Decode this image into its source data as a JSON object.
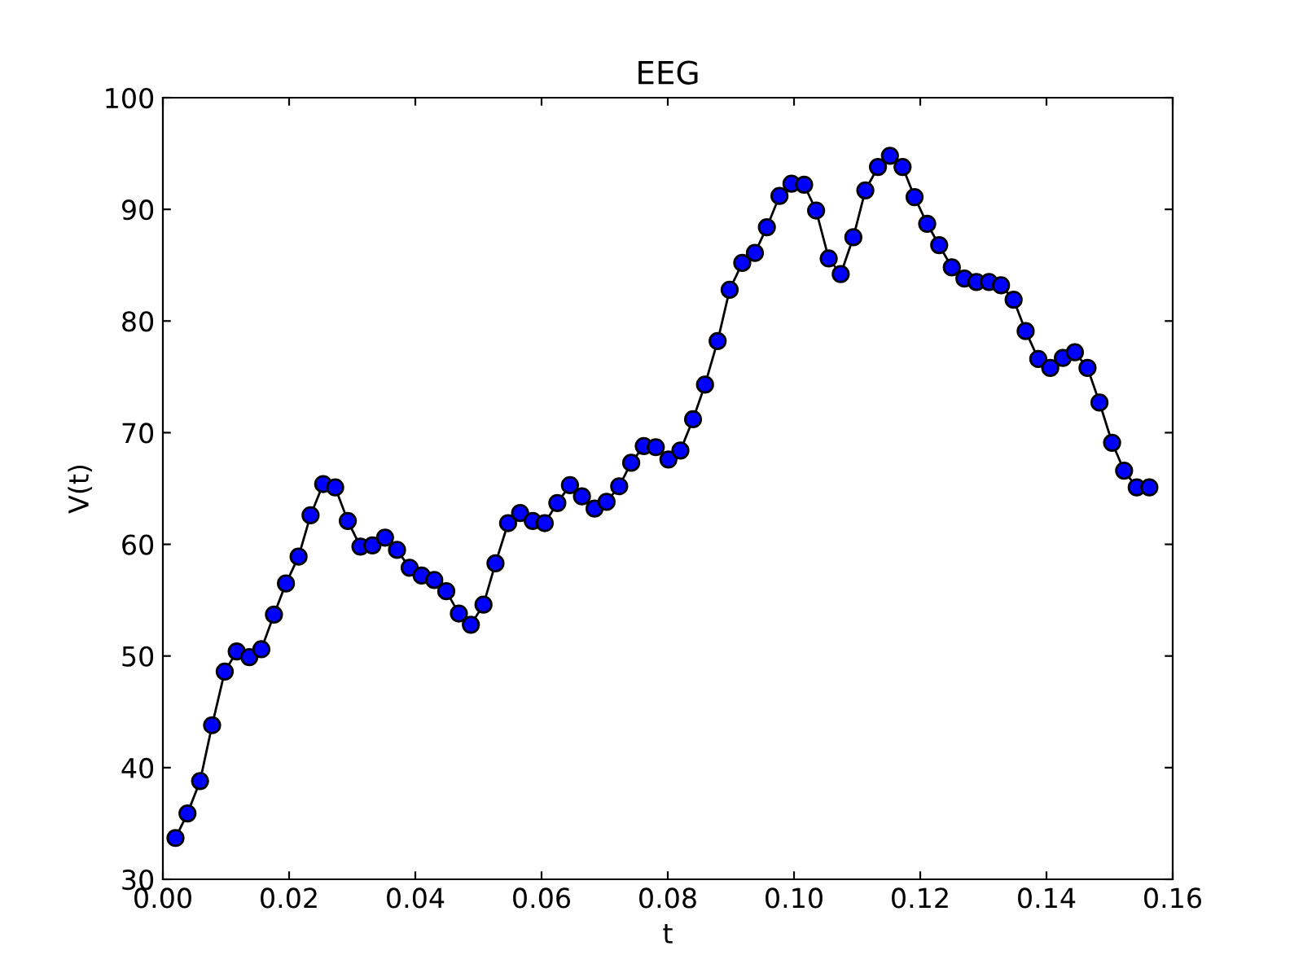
{
  "chart_data": {
    "type": "line",
    "title": "EEG",
    "xlabel": "t",
    "ylabel": "V(t)",
    "x": [
      0.002,
      0.0039,
      0.0059,
      0.0078,
      0.0098,
      0.0117,
      0.0137,
      0.0156,
      0.0176,
      0.0195,
      0.0215,
      0.0234,
      0.0254,
      0.0273,
      0.0293,
      0.0313,
      0.0332,
      0.0352,
      0.0371,
      0.0391,
      0.041,
      0.043,
      0.0449,
      0.0469,
      0.0488,
      0.0508,
      0.0527,
      0.0547,
      0.0566,
      0.0586,
      0.0605,
      0.0625,
      0.0645,
      0.0664,
      0.0684,
      0.0703,
      0.0723,
      0.0742,
      0.0762,
      0.0781,
      0.0801,
      0.082,
      0.084,
      0.0859,
      0.0879,
      0.0898,
      0.0918,
      0.0938,
      0.0957,
      0.0977,
      0.0996,
      0.1016,
      0.1035,
      0.1055,
      0.1074,
      0.1094,
      0.1113,
      0.1133,
      0.1152,
      0.1172,
      0.1191,
      0.1211,
      0.123,
      0.125,
      0.127,
      0.1289,
      0.1309,
      0.1328,
      0.1348,
      0.1367,
      0.1387,
      0.1406,
      0.1426,
      0.1445,
      0.1465,
      0.1484,
      0.1504,
      0.1523,
      0.1543,
      0.1563
    ],
    "series": [
      {
        "color": "#0000ff",
        "values": [
          33.7,
          35.9,
          38.8,
          43.8,
          48.6,
          50.4,
          49.9,
          50.6,
          53.7,
          56.5,
          58.9,
          62.6,
          65.4,
          65.1,
          62.1,
          59.8,
          59.9,
          60.6,
          59.5,
          57.9,
          57.2,
          56.8,
          55.8,
          53.8,
          52.8,
          54.6,
          58.3,
          61.9,
          62.8,
          62.1,
          61.9,
          63.7,
          65.3,
          64.3,
          63.2,
          63.8,
          65.2,
          67.3,
          68.8,
          68.7,
          67.6,
          68.4,
          71.2,
          74.3,
          78.2,
          82.8,
          85.2,
          86.1,
          88.4,
          91.2,
          92.3,
          92.2,
          89.9,
          85.6,
          84.2,
          87.5,
          91.7,
          93.8,
          94.8,
          93.8,
          91.1,
          88.7,
          86.8,
          84.8,
          83.8,
          83.5,
          83.5,
          83.2,
          81.9,
          79.1,
          76.6,
          75.8,
          76.7,
          77.2,
          75.8,
          72.7,
          69.1,
          66.6,
          65.1,
          65.1
        ]
      }
    ],
    "xlim": [
      0.0,
      0.16
    ],
    "xticks": [
      {
        "value": 0,
        "label": "0.00"
      },
      {
        "value": 0.02,
        "label": "0.02"
      },
      {
        "value": 0.04,
        "label": "0.04"
      },
      {
        "value": 0.06,
        "label": "0.06"
      },
      {
        "value": 0.08,
        "label": "0.08"
      },
      {
        "value": 0.1,
        "label": "0.10"
      },
      {
        "value": 0.12,
        "label": "0.12"
      },
      {
        "value": 0.14,
        "label": "0.14"
      },
      {
        "value": 0.16,
        "label": "0.16"
      }
    ],
    "ylim": [
      30,
      100
    ],
    "yticks": [
      30,
      40,
      50,
      60,
      70,
      80,
      90,
      100
    ],
    "marker": "circle",
    "line_style": "solid",
    "grid": false
  }
}
